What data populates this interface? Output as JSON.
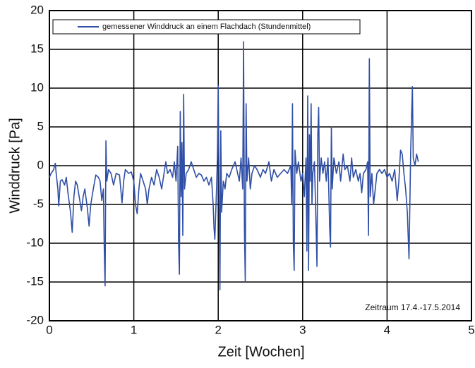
{
  "chart_data": {
    "type": "line",
    "xlabel": "Zeit [Wochen]",
    "ylabel": "Winddruck [Pa]",
    "annotation": "Zeitraum 17.4.-17.5.2014",
    "legend": "upper left",
    "grid": true,
    "xlim": [
      0,
      5
    ],
    "xticks": [
      0,
      1,
      2,
      3,
      4,
      5
    ],
    "ylim": [
      -20,
      20
    ],
    "yticks": [
      -20,
      -15,
      -10,
      -5,
      0,
      5,
      10,
      15,
      20
    ],
    "x": [
      0,
      0.02,
      0.05,
      0.07,
      0.08,
      0.1,
      0.11,
      0.13,
      0.15,
      0.18,
      0.2,
      0.22,
      0.25,
      0.27,
      0.29,
      0.31,
      0.33,
      0.36,
      0.38,
      0.4,
      0.42,
      0.45,
      0.47,
      0.49,
      0.52,
      0.55,
      0.58,
      0.6,
      0.62,
      0.64,
      0.65,
      0.66,
      0.67,
      0.68,
      0.7,
      0.73,
      0.76,
      0.79,
      0.83,
      0.86,
      0.88,
      0.9,
      0.94,
      0.97,
      1.0,
      1.02,
      1.04,
      1.06,
      1.08,
      1.11,
      1.14,
      1.16,
      1.18,
      1.21,
      1.24,
      1.27,
      1.3,
      1.33,
      1.36,
      1.38,
      1.4,
      1.43,
      1.46,
      1.48,
      1.5,
      1.52,
      1.53,
      1.54,
      1.55,
      1.56,
      1.57,
      1.58,
      1.59,
      1.6,
      1.62,
      1.65,
      1.68,
      1.71,
      1.74,
      1.77,
      1.8,
      1.83,
      1.86,
      1.89,
      1.92,
      1.94,
      1.95,
      1.96,
      1.98,
      1.99,
      2.0,
      2.01,
      2.02,
      2.03,
      2.04,
      2.06,
      2.08,
      2.1,
      2.13,
      2.16,
      2.2,
      2.23,
      2.25,
      2.27,
      2.29,
      2.3,
      2.31,
      2.32,
      2.33,
      2.34,
      2.36,
      2.38,
      2.4,
      2.43,
      2.46,
      2.5,
      2.53,
      2.56,
      2.6,
      2.63,
      2.66,
      2.7,
      2.74,
      2.78,
      2.82,
      2.86,
      2.87,
      2.88,
      2.89,
      2.9,
      2.91,
      2.93,
      2.95,
      2.98,
      3.0,
      3.02,
      3.04,
      3.05,
      3.06,
      3.07,
      3.08,
      3.09,
      3.1,
      3.11,
      3.12,
      3.14,
      3.16,
      3.17,
      3.18,
      3.19,
      3.2,
      3.22,
      3.24,
      3.26,
      3.28,
      3.3,
      3.32,
      3.33,
      3.34,
      3.35,
      3.37,
      3.4,
      3.43,
      3.45,
      3.48,
      3.5,
      3.53,
      3.56,
      3.58,
      3.6,
      3.63,
      3.66,
      3.68,
      3.7,
      3.72,
      3.75,
      3.77,
      3.78,
      3.79,
      3.8,
      3.82,
      3.84,
      3.86,
      3.88,
      3.91,
      3.94,
      3.97,
      4.0,
      4.03,
      4.06,
      4.09,
      4.12,
      4.14,
      4.16,
      4.18,
      4.2,
      4.22,
      4.24,
      4.26,
      4.28,
      4.3,
      4.31,
      4.33,
      4.35,
      4.37
    ],
    "series": [
      {
        "name": "gemessener Winddruck an einem Flachdach (Stundenmittel)",
        "color": "#2f4ea6",
        "values": [
          -1.5,
          -1,
          -0.5,
          0.3,
          -1,
          -3,
          -5.2,
          -2,
          -1.8,
          -2.5,
          -1.5,
          -3.5,
          -6,
          -8.6,
          -4,
          -2,
          -2.5,
          -4.5,
          -5.8,
          -4,
          -3,
          -5.5,
          -7.8,
          -5,
          -3,
          -1.2,
          -1.5,
          -2,
          -4.5,
          -3,
          -10.5,
          -15.5,
          3.2,
          -2,
          -0.5,
          -1,
          -2.5,
          -1,
          -1.2,
          -4.8,
          -2,
          -0.5,
          -1,
          -0.8,
          -2,
          -5,
          -6.2,
          -3,
          -1,
          -2,
          -3,
          -5,
          -3,
          -1.5,
          -2.5,
          -0.5,
          -1.5,
          -3,
          -0.8,
          0.5,
          -1,
          -0.5,
          -1.5,
          0.5,
          -2,
          2.5,
          -10,
          -14,
          7,
          -4,
          3,
          -9,
          9.2,
          -3,
          -1,
          -0.5,
          0.5,
          -0.5,
          -1.5,
          -1,
          -1.2,
          -2,
          -1.5,
          -2.5,
          -1.5,
          -5,
          -8,
          -9.5,
          -3,
          1,
          10.3,
          -4,
          -16,
          4.5,
          -6,
          -2,
          -3,
          -1,
          -1.5,
          -0.5,
          0.5,
          -1,
          -2,
          1,
          -3,
          16,
          -8,
          -15,
          8,
          -2,
          1,
          -3,
          -1,
          0,
          -0.5,
          -1.5,
          -0.5,
          -1,
          0.5,
          -2,
          -0.5,
          -1.5,
          -1,
          -0.5,
          -1,
          0,
          -5,
          8,
          -10,
          -13.5,
          2,
          -1,
          0.5,
          -2,
          -1,
          -4,
          1,
          -11,
          9,
          -13.5,
          4,
          -2,
          8,
          -5,
          -1,
          0.5,
          -8,
          -13,
          4,
          7.5,
          -2,
          1,
          -1,
          0.5,
          -2,
          1,
          -8,
          -10.5,
          5,
          -3,
          1,
          -1,
          0.5,
          -2,
          1.5,
          -0.5,
          0,
          -2,
          1,
          -1.5,
          -0.5,
          -2,
          -1,
          -3.5,
          -1,
          -0.5,
          0.5,
          -9,
          13.8,
          -4,
          -1,
          -5,
          -3,
          -1,
          -0.5,
          -1,
          -0.5,
          -1.5,
          -1,
          -2,
          -0.5,
          -4.5,
          -2,
          2,
          1.5,
          -1,
          -3,
          -6,
          -12,
          2,
          10.2,
          1,
          0,
          1.5,
          0.5
        ]
      }
    ]
  }
}
